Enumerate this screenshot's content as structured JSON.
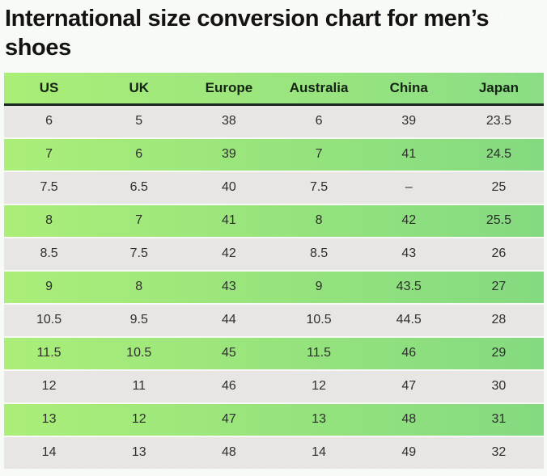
{
  "page": {
    "title": "International size conversion chart for men’s shoes",
    "background_color": "#f8faf5"
  },
  "chart_data": {
    "type": "table",
    "title": "International size conversion chart for men’s shoes",
    "columns": [
      "US",
      "UK",
      "Europe",
      "Australia",
      "China",
      "Japan"
    ],
    "rows": [
      [
        "6",
        "5",
        "38",
        "6",
        "39",
        "23.5"
      ],
      [
        "7",
        "6",
        "39",
        "7",
        "41",
        "24.5"
      ],
      [
        "7.5",
        "6.5",
        "40",
        "7.5",
        "–",
        "25"
      ],
      [
        "8",
        "7",
        "41",
        "8",
        "42",
        "25.5"
      ],
      [
        "8.5",
        "7.5",
        "42",
        "8.5",
        "43",
        "26"
      ],
      [
        "9",
        "8",
        "43",
        "9",
        "43.5",
        "27"
      ],
      [
        "10.5",
        "9.5",
        "44",
        "10.5",
        "44.5",
        "28"
      ],
      [
        "11.5",
        "10.5",
        "45",
        "11.5",
        "46",
        "29"
      ],
      [
        "12",
        "11",
        "46",
        "12",
        "47",
        "30"
      ],
      [
        "13",
        "12",
        "47",
        "13",
        "48",
        "31"
      ],
      [
        "14",
        "13",
        "48",
        "14",
        "49",
        "32"
      ]
    ],
    "row_styles": [
      "gray",
      "green",
      "gray",
      "green",
      "gray",
      "green",
      "gray",
      "green",
      "gray",
      "green",
      "gray"
    ],
    "colors": {
      "header_gradient_start": "#aaee77",
      "header_gradient_end": "#8bdd85",
      "green_row_gradient_start": "#abee79",
      "green_row_gradient_end": "#84da80",
      "gray_row": "#e8e6e4",
      "header_underline": "#18271e",
      "title_text": "#131313",
      "cell_text": "#2e2e2e"
    },
    "grid": "off",
    "legend_position": "none"
  }
}
